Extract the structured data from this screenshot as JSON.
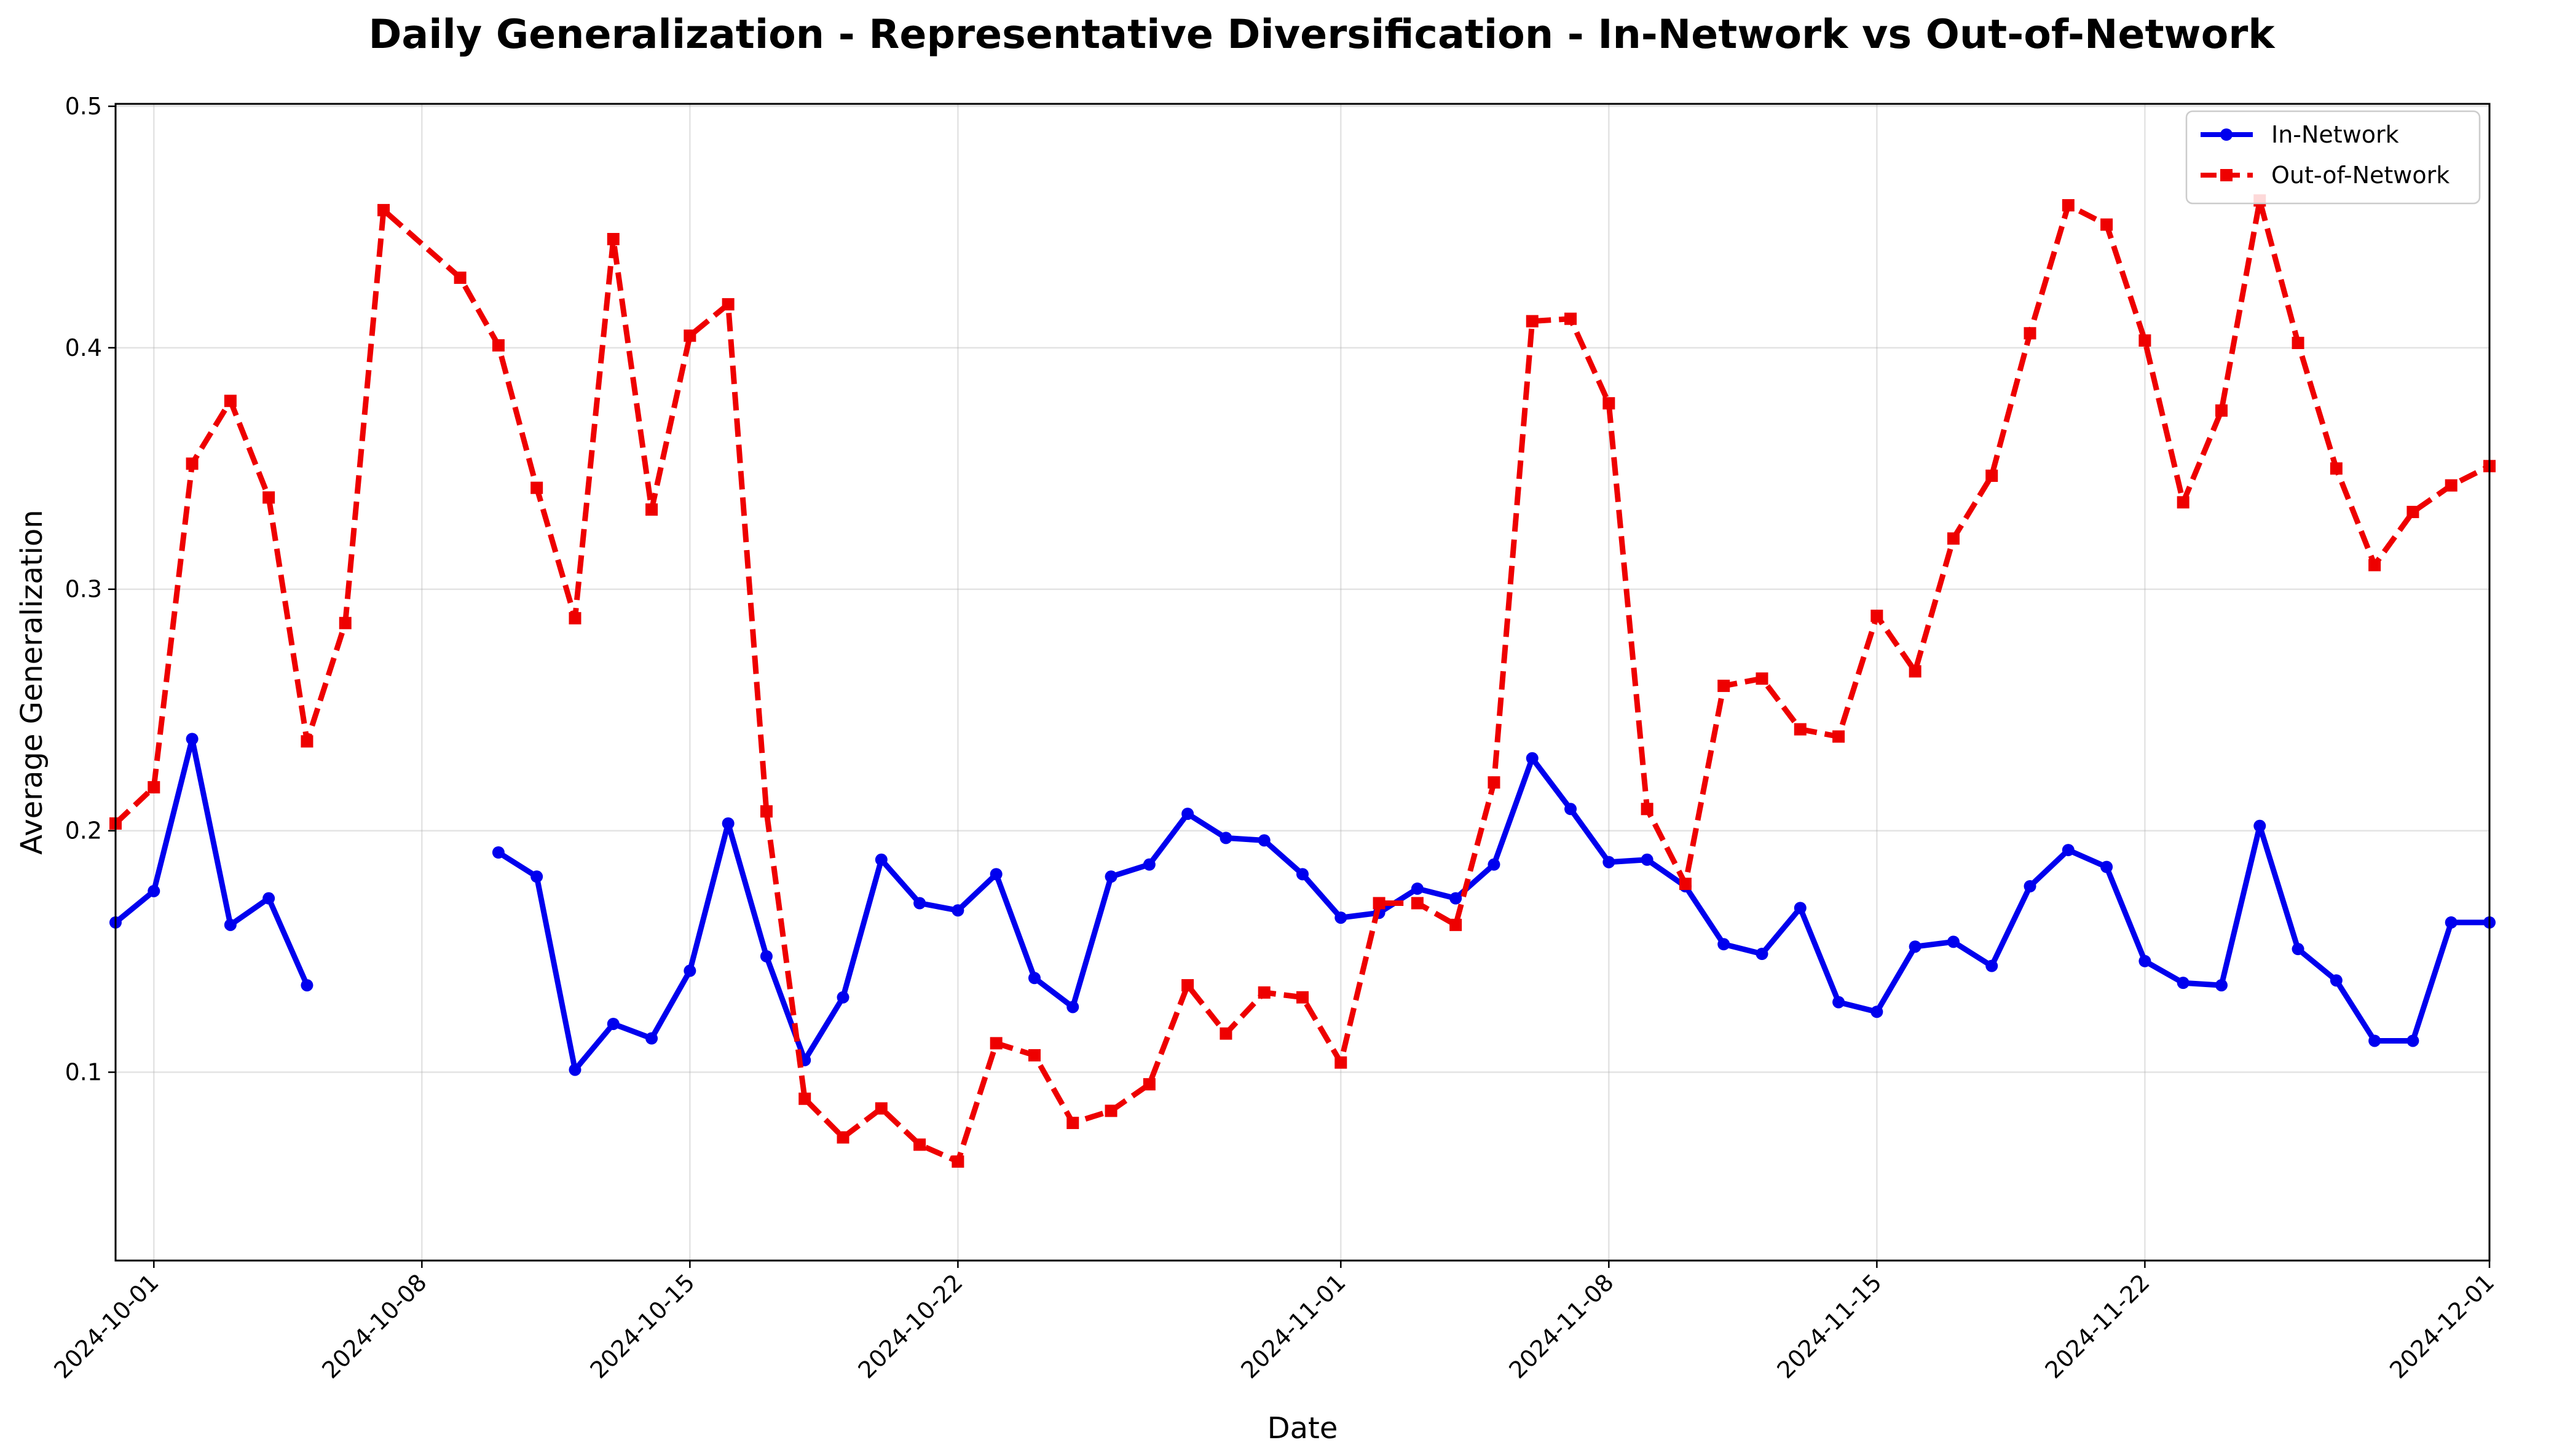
{
  "chart_data": {
    "type": "line",
    "title": "Daily Generalization - Representative Diversification - In-Network vs Out-of-Network",
    "xlabel": "Date",
    "ylabel": "Average Generalization",
    "xlim": [
      "2024-09-30",
      "2024-12-01"
    ],
    "ylim": [
      0.022,
      0.501
    ],
    "yticks": [
      "0.1",
      "0.2",
      "0.3",
      "0.4",
      "0.5"
    ],
    "ytick_values": [
      0.1,
      0.2,
      0.3,
      0.4,
      0.5
    ],
    "xticks": [
      "2024-10-01",
      "2024-10-08",
      "2024-10-15",
      "2024-10-22",
      "2024-11-01",
      "2024-11-08",
      "2024-11-15",
      "2024-11-22",
      "2024-12-01"
    ],
    "grid": true,
    "legend_position": "upper right",
    "series": [
      {
        "name": "In-Network",
        "color": "#0000ee",
        "style": "solid",
        "marker": "circle",
        "points": [
          [
            "2024-09-30",
            0.162
          ],
          [
            "2024-10-01",
            0.175
          ],
          [
            "2024-10-02",
            0.238
          ],
          [
            "2024-10-03",
            0.161
          ],
          [
            "2024-10-04",
            0.172
          ],
          [
            "2024-10-05",
            0.136
          ],
          null,
          [
            "2024-10-10",
            0.191
          ],
          [
            "2024-10-11",
            0.181
          ],
          [
            "2024-10-12",
            0.101
          ],
          [
            "2024-10-13",
            0.12
          ],
          [
            "2024-10-14",
            0.114
          ],
          [
            "2024-10-15",
            0.142
          ],
          [
            "2024-10-16",
            0.203
          ],
          [
            "2024-10-17",
            0.148
          ],
          [
            "2024-10-18",
            0.105
          ],
          [
            "2024-10-19",
            0.131
          ],
          [
            "2024-10-20",
            0.188
          ],
          [
            "2024-10-21",
            0.17
          ],
          [
            "2024-10-22",
            0.167
          ],
          [
            "2024-10-23",
            0.182
          ],
          [
            "2024-10-24",
            0.139
          ],
          [
            "2024-10-25",
            0.127
          ],
          [
            "2024-10-26",
            0.181
          ],
          [
            "2024-10-27",
            0.186
          ],
          [
            "2024-10-28",
            0.207
          ],
          [
            "2024-10-29",
            0.197
          ],
          [
            "2024-10-30",
            0.196
          ],
          [
            "2024-10-31",
            0.182
          ],
          [
            "2024-11-01",
            0.164
          ],
          [
            "2024-11-02",
            0.166
          ],
          [
            "2024-11-03",
            0.176
          ],
          [
            "2024-11-04",
            0.172
          ],
          [
            "2024-11-05",
            0.186
          ],
          [
            "2024-11-06",
            0.23
          ],
          [
            "2024-11-07",
            0.209
          ],
          [
            "2024-11-08",
            0.187
          ],
          [
            "2024-11-09",
            0.188
          ],
          [
            "2024-11-10",
            0.177
          ],
          [
            "2024-11-11",
            0.153
          ],
          [
            "2024-11-12",
            0.149
          ],
          [
            "2024-11-13",
            0.168
          ],
          [
            "2024-11-14",
            0.129
          ],
          [
            "2024-11-15",
            0.125
          ],
          [
            "2024-11-16",
            0.152
          ],
          [
            "2024-11-17",
            0.154
          ],
          [
            "2024-11-18",
            0.144
          ],
          [
            "2024-11-19",
            0.177
          ],
          [
            "2024-11-20",
            0.192
          ],
          [
            "2024-11-21",
            0.185
          ],
          [
            "2024-11-22",
            0.146
          ],
          [
            "2024-11-23",
            0.137
          ],
          [
            "2024-11-24",
            0.136
          ],
          [
            "2024-11-25",
            0.202
          ],
          [
            "2024-11-26",
            0.151
          ],
          [
            "2024-11-27",
            0.138
          ],
          [
            "2024-11-28",
            0.113
          ],
          [
            "2024-11-29",
            0.113
          ],
          [
            "2024-11-30",
            0.162
          ],
          [
            "2024-12-01",
            0.162
          ]
        ]
      },
      {
        "name": "Out-of-Network",
        "color": "#ee0000",
        "style": "dashed",
        "marker": "square",
        "points": [
          [
            "2024-09-30",
            0.203
          ],
          [
            "2024-10-01",
            0.218
          ],
          [
            "2024-10-02",
            0.352
          ],
          [
            "2024-10-03",
            0.378
          ],
          [
            "2024-10-04",
            0.338
          ],
          [
            "2024-10-05",
            0.237
          ],
          [
            "2024-10-06",
            0.286
          ],
          [
            "2024-10-07",
            0.457
          ],
          [
            "2024-10-09",
            0.429
          ],
          [
            "2024-10-10",
            0.401
          ],
          [
            "2024-10-11",
            0.342
          ],
          [
            "2024-10-12",
            0.288
          ],
          [
            "2024-10-13",
            0.445
          ],
          [
            "2024-10-14",
            0.333
          ],
          [
            "2024-10-15",
            0.405
          ],
          [
            "2024-10-16",
            0.418
          ],
          [
            "2024-10-17",
            0.208
          ],
          [
            "2024-10-18",
            0.089
          ],
          [
            "2024-10-19",
            0.073
          ],
          [
            "2024-10-20",
            0.085
          ],
          [
            "2024-10-21",
            0.07
          ],
          [
            "2024-10-22",
            0.063
          ],
          [
            "2024-10-23",
            0.112
          ],
          [
            "2024-10-24",
            0.107
          ],
          [
            "2024-10-25",
            0.079
          ],
          [
            "2024-10-26",
            0.084
          ],
          [
            "2024-10-27",
            0.095
          ],
          [
            "2024-10-28",
            0.136
          ],
          [
            "2024-10-29",
            0.116
          ],
          [
            "2024-10-30",
            0.133
          ],
          [
            "2024-10-31",
            0.131
          ],
          [
            "2024-11-01",
            0.104
          ],
          [
            "2024-11-02",
            0.17
          ],
          [
            "2024-11-03",
            0.17
          ],
          [
            "2024-11-04",
            0.161
          ],
          [
            "2024-11-05",
            0.22
          ],
          [
            "2024-11-06",
            0.411
          ],
          [
            "2024-11-07",
            0.412
          ],
          [
            "2024-11-08",
            0.377
          ],
          [
            "2024-11-09",
            0.209
          ],
          [
            "2024-11-10",
            0.178
          ],
          [
            "2024-11-11",
            0.26
          ],
          [
            "2024-11-12",
            0.263
          ],
          [
            "2024-11-13",
            0.242
          ],
          [
            "2024-11-14",
            0.239
          ],
          [
            "2024-11-15",
            0.289
          ],
          [
            "2024-11-16",
            0.266
          ],
          [
            "2024-11-17",
            0.321
          ],
          [
            "2024-11-18",
            0.347
          ],
          [
            "2024-11-19",
            0.406
          ],
          [
            "2024-11-20",
            0.459
          ],
          [
            "2024-11-21",
            0.451
          ],
          [
            "2024-11-22",
            0.403
          ],
          [
            "2024-11-23",
            0.336
          ],
          [
            "2024-11-24",
            0.374
          ],
          [
            "2024-11-25",
            0.461
          ],
          [
            "2024-11-26",
            0.402
          ],
          [
            "2024-11-27",
            0.35
          ],
          [
            "2024-11-28",
            0.31
          ],
          [
            "2024-11-29",
            0.332
          ],
          [
            "2024-11-30",
            0.343
          ],
          [
            "2024-12-01",
            0.351
          ]
        ]
      }
    ]
  }
}
